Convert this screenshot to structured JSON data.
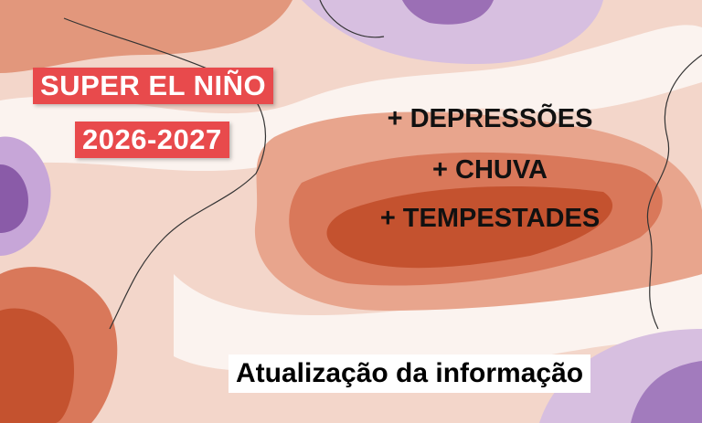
{
  "title": {
    "lines": [
      "SUPER EL NIÑO",
      "2026-2027"
    ]
  },
  "points": [
    "+ DEPRESSÕES",
    "+ CHUVA",
    "+ TEMPESTADES"
  ],
  "caption": "Atualização da informação"
}
